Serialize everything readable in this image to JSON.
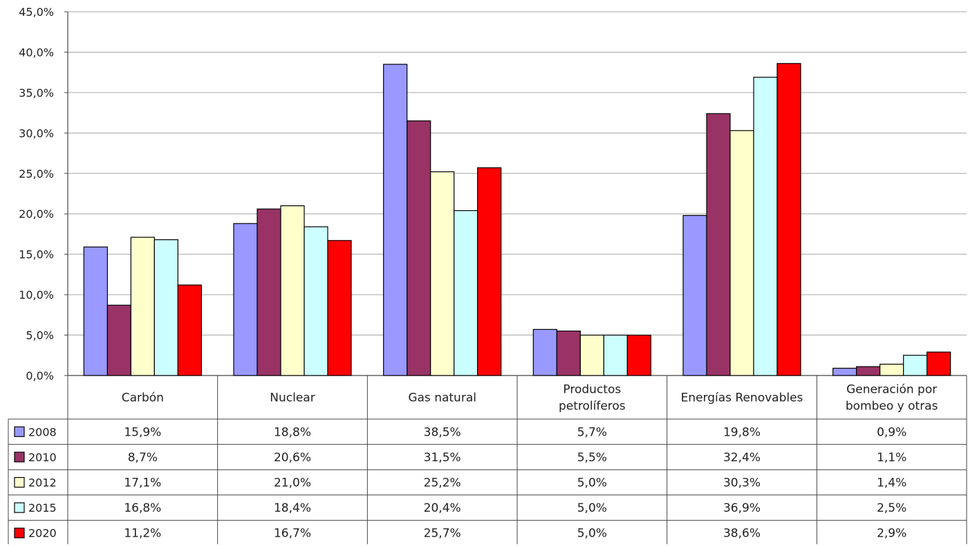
{
  "chart_data": {
    "type": "bar",
    "title": "",
    "xlabel": "",
    "ylabel": "",
    "ylim": [
      0,
      45
    ],
    "y_tick_step": 5,
    "y_tick_format": "comma-decimal-percent",
    "grid": true,
    "legend": "data-table-left",
    "categories": [
      [
        "Carbón"
      ],
      [
        "Nuclear"
      ],
      [
        "Gas natural"
      ],
      [
        "Productos",
        "petrolíferos"
      ],
      [
        "Energías Renovables"
      ],
      [
        "Generación por",
        "bombeo y otras"
      ]
    ],
    "series": [
      {
        "name": "2008",
        "color": "#9999ff",
        "values": [
          15.9,
          18.8,
          38.5,
          5.7,
          19.8,
          0.9
        ],
        "labels": [
          "15,9%",
          "18,8%",
          "38,5%",
          "5,7%",
          "19,8%",
          "0,9%"
        ]
      },
      {
        "name": "2010",
        "color": "#993366",
        "values": [
          8.7,
          20.6,
          31.5,
          5.5,
          32.4,
          1.1
        ],
        "labels": [
          "8,7%",
          "20,6%",
          "31,5%",
          "5,5%",
          "32,4%",
          "1,1%"
        ]
      },
      {
        "name": "2012",
        "color": "#ffffcc",
        "values": [
          17.1,
          21.0,
          25.2,
          5.0,
          30.3,
          1.4
        ],
        "labels": [
          "17,1%",
          "21,0%",
          "25,2%",
          "5,0%",
          "30,3%",
          "1,4%"
        ]
      },
      {
        "name": "2015",
        "color": "#ccffff",
        "values": [
          16.8,
          18.4,
          20.4,
          5.0,
          36.9,
          2.5
        ],
        "labels": [
          "16,8%",
          "18,4%",
          "20,4%",
          "5,0%",
          "36,9%",
          "2,5%"
        ]
      },
      {
        "name": "2020",
        "color": "#ff0000",
        "values": [
          11.2,
          16.7,
          25.7,
          5.0,
          38.6,
          2.9
        ],
        "labels": [
          "11,2%",
          "16,7%",
          "25,7%",
          "5,0%",
          "38,6%",
          "2,9%"
        ]
      }
    ]
  }
}
